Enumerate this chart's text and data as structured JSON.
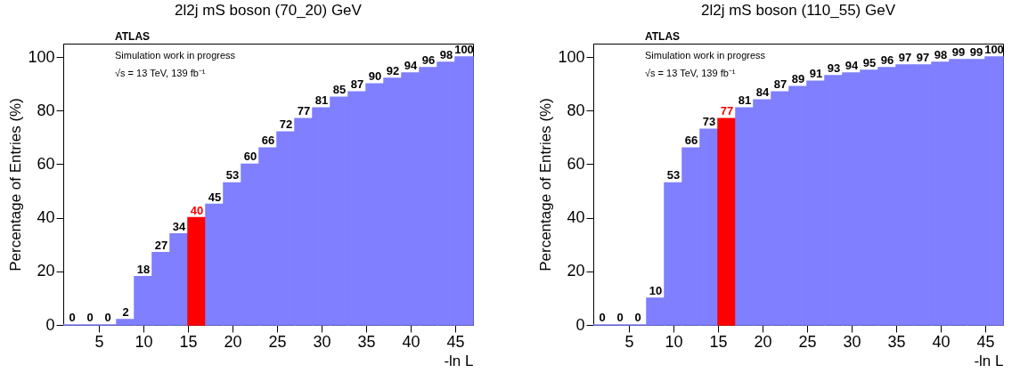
{
  "chart_data": [
    {
      "type": "histogram",
      "title": "2l2j mS boson (70_20) GeV",
      "xlabel": "-ln L",
      "ylabel": "Percentage of Entries (%)",
      "bins": [
        1,
        3,
        5,
        7,
        9,
        11,
        13,
        15,
        17,
        19,
        21,
        23,
        25,
        27,
        29,
        31,
        33,
        35,
        37,
        39,
        41,
        43,
        45,
        47
      ],
      "values": [
        0,
        0,
        0,
        2,
        18,
        27,
        34,
        40,
        45,
        53,
        60,
        66,
        72,
        77,
        81,
        85,
        87,
        90,
        92,
        94,
        96,
        98,
        100
      ],
      "colors": [
        "#7f7fff",
        "#7f7fff",
        "#7f7fff",
        "#7f7fff",
        "#7f7fff",
        "#7f7fff",
        "#7f7fff",
        "#ff0000",
        "#7f7fff",
        "#7f7fff",
        "#7f7fff",
        "#7f7fff",
        "#7f7fff",
        "#7f7fff",
        "#7f7fff",
        "#7f7fff",
        "#7f7fff",
        "#7f7fff",
        "#7f7fff",
        "#7f7fff",
        "#7f7fff",
        "#7f7fff",
        "#7f7fff"
      ],
      "xlim": [
        1,
        47
      ],
      "xticks": [
        5,
        10,
        15,
        20,
        25,
        30,
        35,
        40,
        45
      ],
      "ylim": [
        0,
        105
      ],
      "yticks": [
        0,
        20,
        40,
        60,
        80,
        100
      ],
      "data_labels": true,
      "grid": false,
      "legend": false,
      "annotations": [
        "ATLAS",
        "Simulation work in progress",
        "√s = 13 TeV, 139 fb⁻¹"
      ]
    },
    {
      "type": "histogram",
      "title": "2l2j mS boson (110_55) GeV",
      "xlabel": "-ln L",
      "ylabel": "Percentage of Entries (%)",
      "bins": [
        1,
        3,
        5,
        7,
        9,
        11,
        13,
        15,
        17,
        19,
        21,
        23,
        25,
        27,
        29,
        31,
        33,
        35,
        37,
        39,
        41,
        43,
        45,
        47
      ],
      "values": [
        0,
        0,
        0,
        10,
        53,
        66,
        73,
        77,
        81,
        84,
        87,
        89,
        91,
        93,
        94,
        95,
        96,
        97,
        97,
        98,
        99,
        99,
        100
      ],
      "colors": [
        "#7f7fff",
        "#7f7fff",
        "#7f7fff",
        "#7f7fff",
        "#7f7fff",
        "#7f7fff",
        "#7f7fff",
        "#ff0000",
        "#7f7fff",
        "#7f7fff",
        "#7f7fff",
        "#7f7fff",
        "#7f7fff",
        "#7f7fff",
        "#7f7fff",
        "#7f7fff",
        "#7f7fff",
        "#7f7fff",
        "#7f7fff",
        "#7f7fff",
        "#7f7fff",
        "#7f7fff",
        "#7f7fff"
      ],
      "xlim": [
        1,
        47
      ],
      "xticks": [
        5,
        10,
        15,
        20,
        25,
        30,
        35,
        40,
        45
      ],
      "ylim": [
        0,
        105
      ],
      "yticks": [
        0,
        20,
        40,
        60,
        80,
        100
      ],
      "data_labels": true,
      "grid": false,
      "legend": false,
      "annotations": [
        "ATLAS",
        "Simulation work in progress",
        "√s = 13 TeV, 139 fb⁻¹"
      ]
    }
  ]
}
